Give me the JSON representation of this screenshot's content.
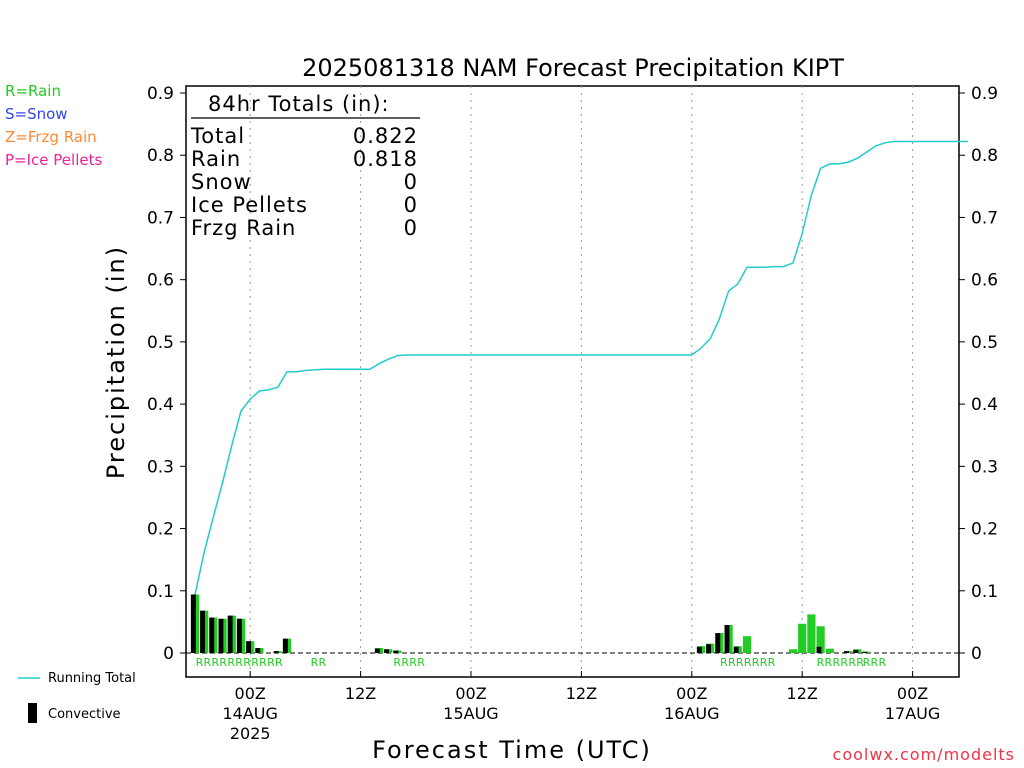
{
  "title": "2025081318 NAM Forecast Precipitation KIPT",
  "colors": {
    "rain": "#22cc22",
    "snow": "#3344ee",
    "frzg": "#ff8833",
    "ice": "#ee2299",
    "total": "#22cccc",
    "convective": "#000000",
    "credit": "#ee3344"
  },
  "type_legend": [
    {
      "label": "R=Rain",
      "color_key": "rain"
    },
    {
      "label": "S=Snow",
      "color_key": "snow"
    },
    {
      "label": "Z=Frzg Rain",
      "color_key": "frzg"
    },
    {
      "label": "P=Ice Pellets",
      "color_key": "ice"
    }
  ],
  "totals": {
    "heading": "84hr Totals (in):",
    "rows": [
      {
        "label": "Total",
        "value": "0.822"
      },
      {
        "label": "Rain",
        "value": "0.818"
      },
      {
        "label": "Snow",
        "value": "0"
      },
      {
        "label": "Ice Pellets",
        "value": "0"
      },
      {
        "label": "Frzg Rain",
        "value": "0"
      }
    ]
  },
  "series_legend": {
    "running_total": "Running Total",
    "convective": "Convective"
  },
  "credit": "coolwx.com/modelts",
  "chart_data": {
    "type": "bar",
    "ylabel": "Precipitation (in)",
    "xlabel": "Forecast Time (UTC)",
    "ylim": [
      -0.04,
      0.9
    ],
    "xlim": [
      -1,
      84
    ],
    "x_unit": "forecast hours from 18Z 13AUG2025",
    "y_ticks": [
      "0",
      "0.1",
      "0.2",
      "0.3",
      "0.4",
      "0.5",
      "0.6",
      "0.7",
      "0.8",
      "0.9"
    ],
    "y_tick_values": [
      0,
      0.1,
      0.2,
      0.3,
      0.4,
      0.5,
      0.6,
      0.7,
      0.8,
      0.9
    ],
    "x_ticks": [
      {
        "x": 6,
        "lines": [
          "00Z",
          "14AUG",
          "2025"
        ]
      },
      {
        "x": 18,
        "lines": [
          "12Z"
        ]
      },
      {
        "x": 30,
        "lines": [
          "00Z",
          "15AUG"
        ]
      },
      {
        "x": 42,
        "lines": [
          "12Z"
        ]
      },
      {
        "x": 54,
        "lines": [
          "00Z",
          "16AUG"
        ]
      },
      {
        "x": 66,
        "lines": [
          "12Z"
        ]
      },
      {
        "x": 78,
        "lines": [
          "00Z",
          "17AUG"
        ]
      }
    ],
    "grid": "vertical dotted at 00Z/12Z",
    "bars": [
      {
        "x": 0,
        "total": 0.094,
        "conv": 0.094
      },
      {
        "x": 1,
        "total": 0.068,
        "conv": 0.068
      },
      {
        "x": 2,
        "total": 0.057,
        "conv": 0.057
      },
      {
        "x": 3,
        "total": 0.055,
        "conv": 0.055
      },
      {
        "x": 4,
        "total": 0.06,
        "conv": 0.06
      },
      {
        "x": 5,
        "total": 0.055,
        "conv": 0.055
      },
      {
        "x": 6,
        "total": 0.019,
        "conv": 0.019
      },
      {
        "x": 7,
        "total": 0.008,
        "conv": 0.008
      },
      {
        "x": 9,
        "total": 0.003,
        "conv": 0.003
      },
      {
        "x": 10,
        "total": 0.023,
        "conv": 0.023
      },
      {
        "x": 20,
        "total": 0.008,
        "conv": 0.007
      },
      {
        "x": 21,
        "total": 0.006,
        "conv": 0.006
      },
      {
        "x": 22,
        "total": 0.004,
        "conv": 0.004
      },
      {
        "x": 55,
        "total": 0.011,
        "conv": 0.01
      },
      {
        "x": 56,
        "total": 0.015,
        "conv": 0.014
      },
      {
        "x": 57,
        "total": 0.032,
        "conv": 0.032
      },
      {
        "x": 58,
        "total": 0.045,
        "conv": 0.045
      },
      {
        "x": 59,
        "total": 0.011,
        "conv": 0.01
      },
      {
        "x": 60,
        "total": 0.027,
        "conv": 0.0
      },
      {
        "x": 65,
        "total": 0.006,
        "conv": 0.0
      },
      {
        "x": 66,
        "total": 0.047,
        "conv": 0.0
      },
      {
        "x": 67,
        "total": 0.062,
        "conv": 0.0
      },
      {
        "x": 68,
        "total": 0.043,
        "conv": 0.01
      },
      {
        "x": 69,
        "total": 0.007,
        "conv": 0.0
      },
      {
        "x": 71,
        "total": 0.003,
        "conv": 0.003
      },
      {
        "x": 72,
        "total": 0.006,
        "conv": 0.005
      },
      {
        "x": 73,
        "total": 0.002,
        "conv": 0.002
      }
    ],
    "ptype_labels": [
      {
        "x": 0.5,
        "text": "RRRRRRRRRRR"
      },
      {
        "x": 13,
        "text": "RR"
      },
      {
        "x": 22,
        "text": "RRRR"
      },
      {
        "x": 57.5,
        "text": "RRRRRRR"
      },
      {
        "x": 68,
        "text": "RRRRRR"
      },
      {
        "x": 73,
        "text": "RRR"
      }
    ],
    "running_total": {
      "name": "Running Total",
      "x": [
        0,
        1,
        2,
        3,
        4,
        5,
        6,
        7,
        8,
        9,
        10,
        11,
        12,
        13,
        14,
        15,
        16,
        17,
        18,
        19,
        20,
        21,
        22,
        23,
        24,
        30,
        36,
        42,
        48,
        54,
        55,
        56,
        57,
        58,
        59,
        60,
        61,
        62,
        63,
        64,
        65,
        66,
        67,
        68,
        69,
        70,
        71,
        72,
        73,
        74,
        75,
        76,
        80,
        84
      ],
      "y": [
        0.094,
        0.162,
        0.219,
        0.274,
        0.334,
        0.389,
        0.408,
        0.421,
        0.423,
        0.427,
        0.452,
        0.452,
        0.454,
        0.455,
        0.456,
        0.456,
        0.456,
        0.456,
        0.456,
        0.456,
        0.465,
        0.472,
        0.478,
        0.479,
        0.479,
        0.479,
        0.479,
        0.479,
        0.479,
        0.479,
        0.49,
        0.505,
        0.537,
        0.582,
        0.593,
        0.62,
        0.62,
        0.62,
        0.621,
        0.621,
        0.627,
        0.674,
        0.736,
        0.779,
        0.786,
        0.786,
        0.789,
        0.795,
        0.805,
        0.815,
        0.82,
        0.822,
        0.822,
        0.822
      ]
    }
  }
}
